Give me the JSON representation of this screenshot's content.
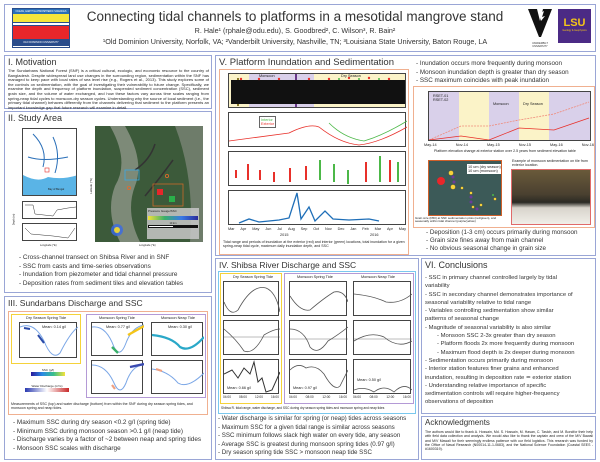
{
  "header": {
    "title": "Connecting tidal channels to platforms in a mesotidal mangrove stand",
    "authors": "R. Hale¹ (rphale@odu.edu), S. Goodbred², C. Wilson³, R. Bain²",
    "affiliations": "¹Old Dominion University, Norfolk, VA; ²Vanderbilt University, Nashville, TN; ³Louisiana State University, Baton Rouge, LA",
    "odu_logo_top": "OCEAN, EARTH & ATMOSPHERIC SCIENCES",
    "odu_logo_bottom": "OLD DOMINION UNIVERSITY",
    "vanderbilt_logo": "VANDERBILT UNIVERSITY",
    "lsu_logo": "LSU",
    "lsu_sub": "Geology & Geophysics"
  },
  "motivation": {
    "title": "I. Motivation",
    "text": "The Sundarbans National Forest (SNF) is a critical cultural, ecologic, and economic resource to the country of Bangladesh. Despite widespread land use changes in the surrounding region, sedimentation within the SNF has managed to keep pace with local rates of sea level rise (e.g., Rogers et al., 2013). This study explores some of the controls on sedimentation, with the goal of investigating their vulnerability to future change. Specifically, we examine the depth and frequency of platform inundation, suspended sediment concentration (SSC), sediment grain size, and the volume of water exchanged, and how these factors vary across time scales ranging from spring-neap tidal cycles to monsoon-dry season cycles. Understanding why the source of local sediment (i.e., the primary tidal channel) behaves differently from the channels delivering that sediment to the platform presents an important knowledge gap that future research will examine in detail."
  },
  "study_area": {
    "title": "II. Study Area",
    "map_labels": {
      "bay": "Bay of Bengal",
      "legend": "Pressure Gauge/SSC",
      "scale": "10 km",
      "xlabel": "Longitude (°E)",
      "ylabel": "Latitude (°N)",
      "depth": "Depth (m)"
    },
    "bullets": [
      "- Cross-channel transect on Shibsa River and in SNF",
      "- SSC from casts and time-series observations",
      "- Inundation from piezometer and tidal channel pressure",
      "- Deposition rates from sediment tiles and elevation tables"
    ]
  },
  "sundarbans": {
    "title": "III. Sundarbans Discharge and SSC",
    "panels": [
      {
        "title": "Dry Season Spring Tide",
        "mean": "Mean: 0.14 g/l"
      },
      {
        "title": "Monsoon Spring Tide",
        "mean": "Mean: 0.77 g/l"
      },
      {
        "title": "Monsoon Neap Tide",
        "mean": "Mean: 0.30 g/l"
      }
    ],
    "ssc_label": "SSC (g/l)",
    "discharge_label": "Water Discharge (m³/s)",
    "caption": "Measurements of SSC (top) and water discharge (bottom) from within the SNF during dry season spring tides, and monsoon spring and neap tides.",
    "bullets": [
      "- Maximum SSC during dry season <0.2 g/l (spring tide)",
      "- Minimum SSC during monsoon season >0.1 g/l (neap tide)",
      "- Discharge varies by a factor of ~2 between neap and spring tides",
      "- Monsoon SSC scales with discharge"
    ]
  },
  "shibsa": {
    "title": "IV. Shibsa River Discharge and SSC",
    "panels": [
      {
        "title": "Dry Season Spring Tide",
        "mean": "Mean: 0.66 g/l"
      },
      {
        "title": "Monsoon Spring Tide",
        "mean": "Mean: 0.97 g/l"
      },
      {
        "title": "Monsoon Neap Tide",
        "mean": "Mean: 0.50 g/l"
      }
    ],
    "times": [
      "04:00",
      "08:00",
      "12:00",
      "16:00"
    ],
    "caption": "Shibsa R. tidal range, water discharge, and SSC during dry season spring tides and monsoon spring and neap tides",
    "bullets": [
      "- Water discharge is similar for spring (or neap) tides across seasons",
      "- Maximum SSC for a given tidal range is similar across seasons",
      "- SSC minimum follows slack high water on every tide, any season",
      "- Average SSC is greatest during monsoon spring tides (0.97 g/l)",
      "- Dry season spring tide SSC > monsoon neap tide SSC"
    ]
  },
  "platform": {
    "title": "V. Platform Inundation and Sedimentation",
    "seasons": [
      "Monsoon",
      "Dry Season"
    ],
    "legend": [
      "Interior",
      "Exterior"
    ],
    "months": [
      "Mar",
      "Apr",
      "May",
      "Jun",
      "Jul",
      "Aug",
      "Sep",
      "Oct",
      "Nov",
      "Dec",
      "Jan",
      "Feb",
      "Mar",
      "Apr",
      "May"
    ],
    "years": [
      "2015",
      "2016"
    ],
    "caption": "Tidal range and periods of inundation at the exterior (red) and interior (green) locations, total inundation for a given spring-neap tidal cycle, maximum daily inundation depth, and SSC",
    "bullets_top": [
      "- Inundation occurs more frequently during monsoon",
      "- Monsoon inundation depth is greater than dry season",
      "- SSC maximum coincides with peak inundation"
    ],
    "elev_legend": [
      "RSET-01",
      "RSET-02"
    ],
    "elev_ticks": [
      "May-14",
      "Nov-14",
      "May-15",
      "Nov-15",
      "May-16",
      "Nov-16"
    ],
    "elev_caption": "Platform elevation change at exterior station over 2.5 years from sediment elevation table",
    "grain_legend": [
      "10 um (dry season)",
      "10 um (monsoon)"
    ],
    "grain_caption": "Grain size (D50) at SNF sedimentation plots (red/green), and seasonally within tidal channel (purple/yellow)",
    "photo_caption": "Example of monsoon sedimentation on tile from exterior location.",
    "bullets_bottom": [
      "- Deposition (1-3 cm) occurs primarily during monsoon",
      "- Grain size fines away from main channel",
      "- No obvious seasonal change in grain size"
    ]
  },
  "conclusions": {
    "title": "VI. Conclusions",
    "items": [
      {
        "text": "- SSC in primary channel controlled largely by tidal",
        "indent": false
      },
      {
        "text": "variability",
        "indent": false
      },
      {
        "text": "- SSC in secondary channel demonstrates importance of",
        "indent": false
      },
      {
        "text": "seasonal variability relative to tidal range",
        "indent": false
      },
      {
        "text": "- Variables controlling sedimentation show similar",
        "indent": false
      },
      {
        "text": "patterns of seasonal change",
        "indent": false
      },
      {
        "text": "- Magnitude of seasonal variability is also similar",
        "indent": false
      },
      {
        "text": "- Monsoon SSC 2-3x greater than dry season",
        "indent": true
      },
      {
        "text": "- Platform floods 2x more frequently during monsoon",
        "indent": true
      },
      {
        "text": "- Maximum flood depth is 2x deeper during monsoon",
        "indent": true
      },
      {
        "text": "- Sedimentation occurs primarily during monsoon",
        "indent": false
      },
      {
        "text": "- Interior station features finer grains and enhanced",
        "indent": false
      },
      {
        "text": "inundation, resulting in deposition rate ≃ exterior station",
        "indent": false
      },
      {
        "text": "- Understanding relative importance of specific",
        "indent": false
      },
      {
        "text": "sedimentation controls will require higher-frequency",
        "indent": false
      },
      {
        "text": "observations of deposition",
        "indent": false
      }
    ]
  },
  "acknowledgments": {
    "title": "Acknowledgments",
    "text": "The authors would like to thank A. Hossain, Md. S. Hossain, M. Hasan, C. Taslch, and M. Bondfor their help with field data collection and analysis. We would also like to thank the captain and crew of the M/V Bawali and M/V Mawali for their seemingly endless patience with our field logistics. This research was funded by the Office of Naval Research (N00014-11-1-0683), and the National Science Foundation (Coastal SEES - #1600319)."
  },
  "colors": {
    "border": "#9aa6d6",
    "figure_border": "#f0b090",
    "monsoon": "#d9d0ea",
    "dry": "#fbf3c8",
    "lsu": "#4b2a85",
    "exterior": "#e8302a",
    "interior": "#4cb848",
    "ssc": "#1f6fb8"
  }
}
